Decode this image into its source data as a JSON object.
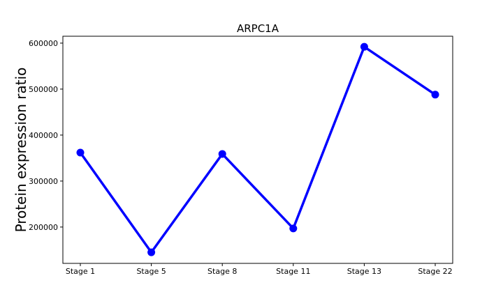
{
  "chart_data": {
    "type": "line",
    "title": "ARPC1A",
    "xlabel": "",
    "ylabel": "Protein expression ratio",
    "categories": [
      "Stage 1",
      "Stage 5",
      "Stage 8",
      "Stage 11",
      "Stage 13",
      "Stage 22"
    ],
    "series": [
      {
        "values": [
          362000,
          145000,
          359000,
          197000,
          592000,
          488000
        ],
        "color": "#0000ff"
      }
    ],
    "ylim": [
      121000,
      615000
    ],
    "yticks": [
      200000,
      300000,
      400000,
      500000,
      600000
    ],
    "ytick_labels": [
      "200000",
      "300000",
      "400000",
      "500000",
      "600000"
    ],
    "grid": false,
    "legend": "none"
  }
}
